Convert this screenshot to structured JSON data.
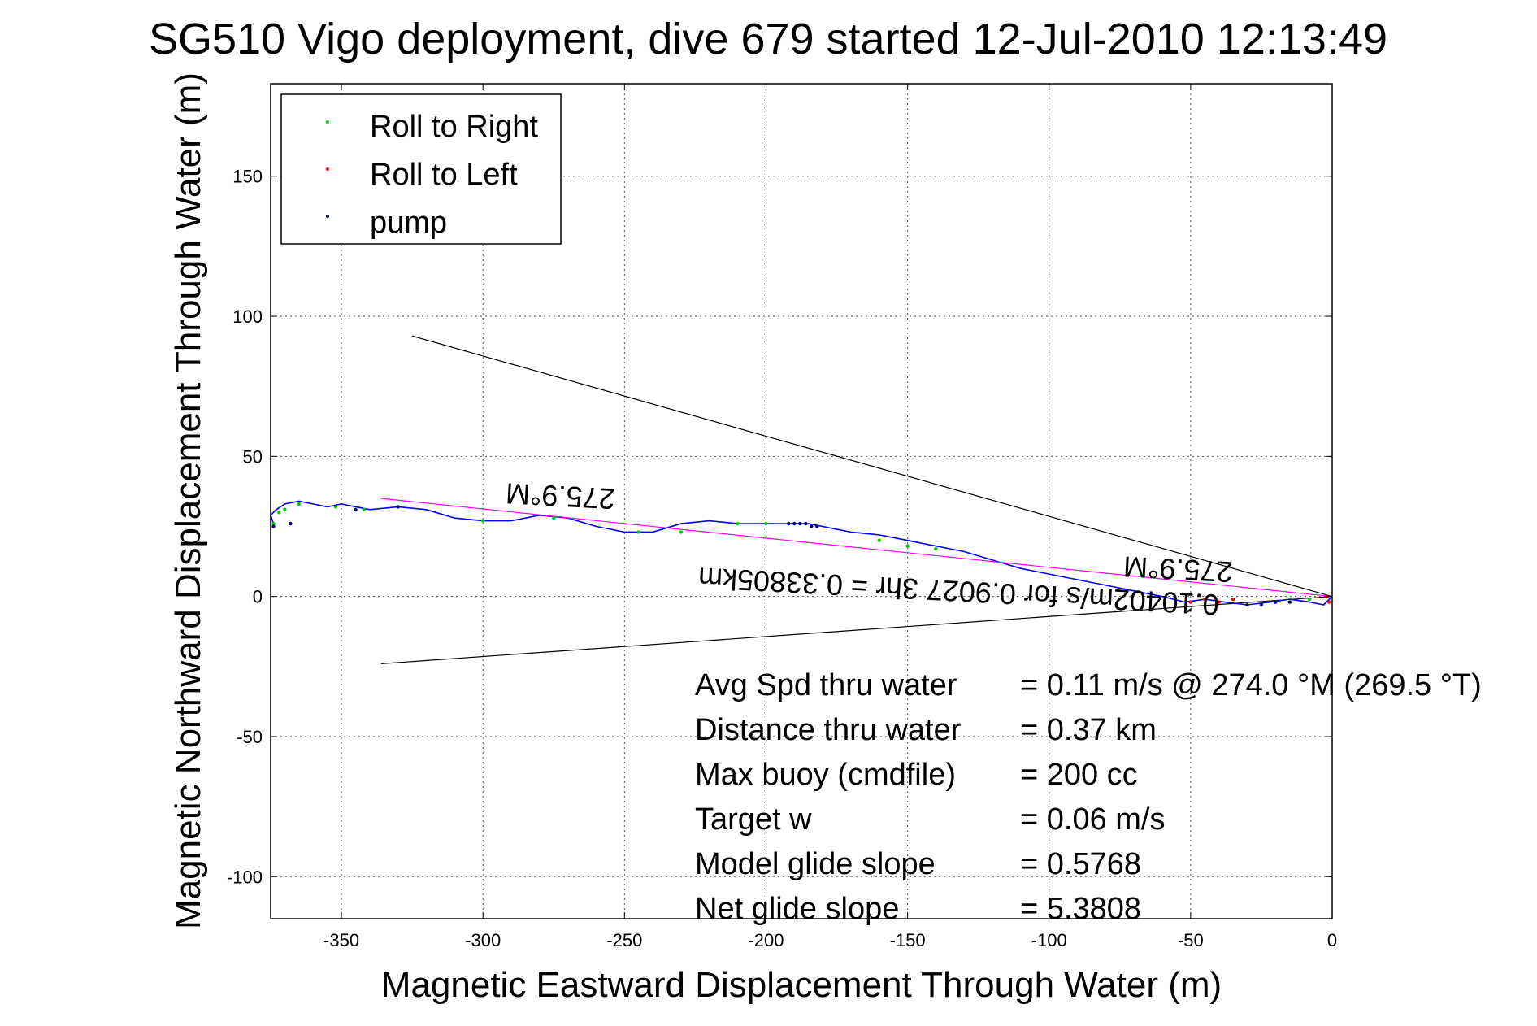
{
  "chart_data": {
    "type": "line",
    "title": "SG510 Vigo deployment, dive 679 started 12-Jul-2010 12:13:49",
    "xlabel": "Magnetic Eastward Displacement Through Water (m)",
    "ylabel": "Magnetic Northward Displacement Through Water (m)",
    "xlim": [
      -375,
      0
    ],
    "ylim": [
      -115,
      183
    ],
    "x_ticks": [
      -350,
      -300,
      -250,
      -200,
      -150,
      -100,
      -50,
      0
    ],
    "y_ticks": [
      -100,
      -50,
      0,
      50,
      100,
      150
    ],
    "grid": true,
    "legend_position": "top-left",
    "legend": [
      {
        "name": "Roll to Right",
        "color": "#00cc00"
      },
      {
        "name": "Roll to Left",
        "color": "#ff0000"
      },
      {
        "name": "pump",
        "color": "#000080"
      }
    ],
    "series": [
      {
        "name": "track",
        "color": "#0000ff",
        "x": [
          0,
          -3,
          -8,
          -15,
          -22,
          -30,
          -38,
          -45,
          -52,
          -60,
          -70,
          -80,
          -90,
          -100,
          -110,
          -120,
          -130,
          -140,
          -150,
          -160,
          -170,
          -180,
          -185,
          -190,
          -195,
          -200,
          -210,
          -220,
          -230,
          -240,
          -250,
          -260,
          -270,
          -280,
          -290,
          -300,
          -310,
          -320,
          -330,
          -340,
          -350,
          -355,
          -360,
          -365,
          -370,
          -373,
          -375,
          -374
        ],
        "y": [
          0,
          -3,
          -2,
          -1,
          -2,
          -3,
          -2,
          -1,
          -2,
          0,
          2,
          4,
          6,
          8,
          10,
          13,
          16,
          18,
          20,
          22,
          23,
          25,
          26,
          26,
          26,
          26,
          26,
          27,
          26,
          23,
          23,
          25,
          28,
          29,
          27,
          27,
          28,
          31,
          32,
          31,
          33,
          32,
          33,
          34,
          33,
          31,
          29,
          26
        ]
      },
      {
        "name": "heading-line",
        "color": "#ff00ff",
        "x": [
          0,
          -336
        ],
        "y": [
          0,
          35
        ]
      },
      {
        "name": "cone-upper",
        "color": "#000000",
        "x": [
          0,
          -325
        ],
        "y": [
          0,
          93
        ]
      },
      {
        "name": "cone-lower",
        "color": "#000000",
        "x": [
          0,
          -336
        ],
        "y": [
          0,
          -24
        ]
      }
    ],
    "markers": {
      "roll_to_right": {
        "x": [
          -374,
          -372,
          -370,
          -365,
          -352,
          -342,
          -300,
          -275,
          -245,
          -230,
          -210,
          -200,
          -160,
          -150,
          -140,
          -20,
          -8
        ],
        "y": [
          26,
          30,
          31,
          33,
          32,
          31,
          27,
          28,
          23,
          23,
          26,
          26,
          20,
          18,
          17,
          -2,
          -1
        ]
      },
      "roll_to_left": {
        "x": [
          -50,
          -45,
          -40,
          -35,
          -2,
          -1
        ],
        "y": [
          -2,
          -1,
          -2,
          -1,
          0,
          -2
        ]
      },
      "pump": {
        "x": [
          -374,
          -368,
          -345,
          -330,
          -192,
          -190,
          -188,
          -186,
          -184,
          -182,
          -30,
          -25,
          -20,
          -15
        ],
        "y": [
          25,
          26,
          31,
          32,
          26,
          26,
          26,
          26,
          25,
          25,
          -3,
          -3,
          -2,
          -2
        ]
      }
    },
    "annotations": {
      "heading_label_left": "275.9°M",
      "heading_label_right": "275.9°M",
      "speed_label": "0.10402m/s for 0.9027 3hr = 0.33805km"
    },
    "stats": [
      {
        "label": "Avg Spd thru water",
        "value": "=  0.11 m/s @ 274.0 °M (269.5 °T)"
      },
      {
        "label": "Distance thru water",
        "value": "=  0.37 km"
      },
      {
        "label": "Max buoy (cmdfile)",
        "value": "= 200 cc"
      },
      {
        "label": "Target w",
        "value": "= 0.06 m/s"
      },
      {
        "label": "Model glide slope",
        "value": "= 0.5768"
      },
      {
        "label": "Net glide slope",
        "value": "= 5.3808"
      }
    ]
  }
}
